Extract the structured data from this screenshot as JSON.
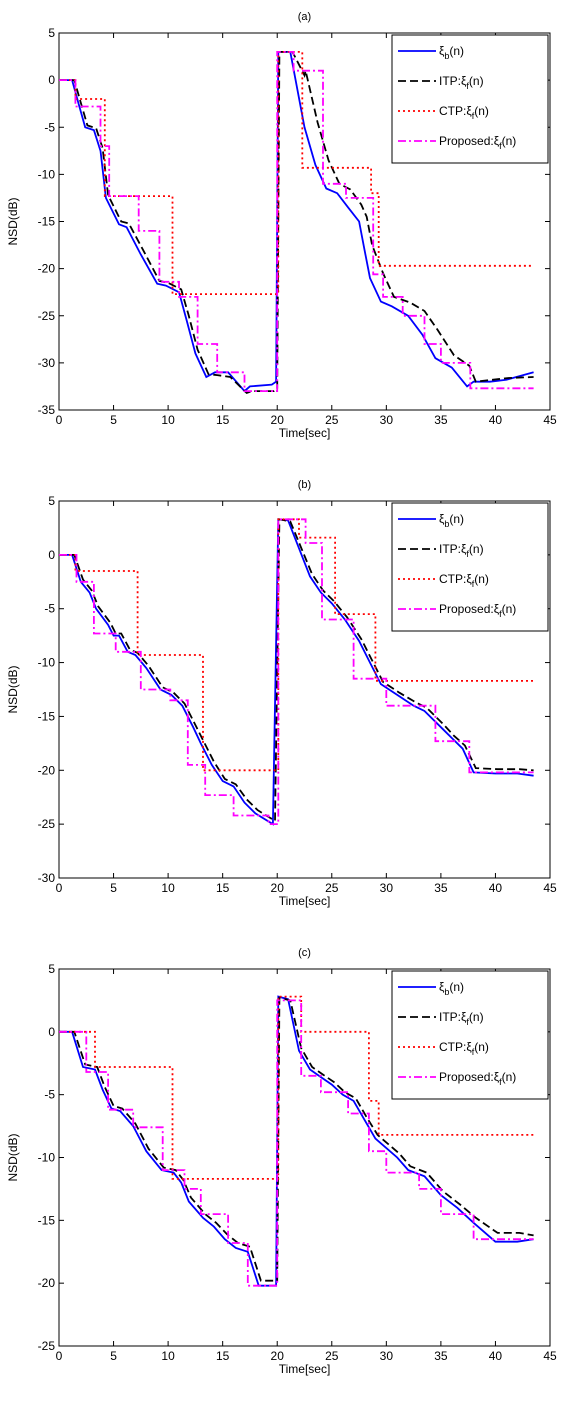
{
  "chart_data": [
    {
      "type": "line",
      "title": "(a)",
      "xlabel": "Time[sec]",
      "ylabel": "NSD(dB)",
      "xlim": [
        0,
        45
      ],
      "ylim": [
        -35,
        5
      ],
      "xticks": [
        0,
        5,
        10,
        15,
        20,
        25,
        30,
        35,
        40,
        45
      ],
      "yticks": [
        -35,
        -30,
        -25,
        -20,
        -15,
        -10,
        -5,
        0,
        5
      ],
      "grid": false,
      "legend": "top-right",
      "legend_entries": [
        "ξb(n)",
        "ITP:ξf(n)",
        "CTP:ξf(n)",
        "Proposed:ξf(n)"
      ],
      "series": [
        {
          "name": "ξb(n)",
          "color": "#0000ff",
          "style": "solid",
          "x": [
            0,
            1.2,
            1.8,
            2.4,
            3.2,
            3.8,
            4.3,
            5.5,
            6.2,
            7.5,
            9,
            9.8,
            11,
            11.7,
            12.5,
            13.5,
            14.3,
            15.5,
            17,
            17.5,
            19.5,
            19.9,
            20.1,
            21.2,
            22.5,
            23.5,
            24.5,
            25.5,
            26.5,
            27.5,
            28,
            28.5,
            29.5,
            30.5,
            32,
            33.3,
            34.5,
            36,
            37.4,
            38,
            39.5,
            41,
            43.5
          ],
          "y": [
            0,
            0,
            -2.5,
            -5,
            -5.3,
            -7.5,
            -12.5,
            -15.3,
            -15.6,
            -18.5,
            -21.6,
            -21.8,
            -22.5,
            -25.5,
            -29,
            -31.5,
            -31,
            -31,
            -33,
            -32.5,
            -32.3,
            -32,
            3,
            3,
            -5,
            -9,
            -11.5,
            -12,
            -13.5,
            -15,
            -18,
            -21,
            -23.5,
            -24,
            -25,
            -27,
            -29.5,
            -30.5,
            -32.5,
            -32,
            -32,
            -31.8,
            -31
          ]
        },
        {
          "name": "ITP:ξf(n)",
          "color": "#000000",
          "style": "dashed",
          "x": [
            0,
            1.4,
            2,
            2.6,
            3.4,
            4,
            4.5,
            5.7,
            6.4,
            7.7,
            9.2,
            10,
            11.2,
            11.9,
            12.7,
            13.7,
            14.5,
            15.7,
            17.2,
            17.7,
            19.7,
            20,
            20.2,
            21.4,
            22.5,
            22.6,
            23.7,
            24.7,
            25.7,
            26.7,
            27.7,
            28.2,
            28.7,
            29.7,
            30.7,
            32.2,
            33.5,
            34.7,
            36.2,
            37.6,
            38.2,
            39.7,
            41.2,
            43.5
          ],
          "y": [
            0,
            0,
            -2.4,
            -4.8,
            -5.1,
            -7.2,
            -12.2,
            -15,
            -15.2,
            -18,
            -21.3,
            -21.5,
            -22.2,
            -25,
            -28.6,
            -31.2,
            -31.3,
            -31.5,
            -33.2,
            -33,
            -33,
            -32.8,
            3,
            3,
            0.5,
            1,
            -4.5,
            -8.5,
            -11,
            -11.6,
            -13.2,
            -14.5,
            -17.5,
            -20.5,
            -23,
            -23.6,
            -24.5,
            -26.5,
            -29.2,
            -30.3,
            -32,
            -31.8,
            -31.6,
            -31.5
          ]
        },
        {
          "name": "CTP:ξf(n)",
          "color": "#ff0000",
          "style": "dotted",
          "x": [
            0,
            1.5,
            1.5,
            4.2,
            4.2,
            10.4,
            10.4,
            20.1,
            20.1,
            22.3,
            22.3,
            25.3,
            25.3,
            28.6,
            28.6,
            29.3,
            29.3,
            43.5
          ],
          "y": [
            0,
            0,
            -2,
            -2,
            -12.3,
            -12.3,
            -22.7,
            -22.7,
            3,
            3,
            -9.3,
            -9.3,
            -9.3,
            -9.3,
            -12,
            -12,
            -19.7,
            -19.7
          ]
        },
        {
          "name": "Proposed:ξf(n)",
          "color": "#ff00ff",
          "style": "dashdot",
          "x": [
            0,
            1.5,
            1.5,
            3.8,
            3.8,
            4.6,
            4.6,
            7.3,
            7.3,
            9.2,
            9.2,
            11,
            11,
            12.7,
            12.7,
            14.5,
            14.5,
            17,
            17,
            20,
            20,
            21.5,
            21.5,
            24.2,
            24.2,
            26.3,
            26.3,
            28.8,
            28.8,
            29.7,
            29.7,
            31.5,
            31.5,
            33.5,
            33.5,
            35,
            35,
            37.7,
            37.7,
            43.5
          ],
          "y": [
            0,
            0,
            -2.8,
            -2.8,
            -7,
            -7,
            -12.3,
            -12.3,
            -16,
            -16,
            -21.4,
            -21.4,
            -23,
            -23,
            -28,
            -28,
            -31,
            -31,
            -33,
            -33,
            3,
            3,
            1,
            1,
            -11,
            -11,
            -12.5,
            -12.5,
            -20.6,
            -20.6,
            -23,
            -23,
            -25,
            -25,
            -28,
            -28,
            -30,
            -30,
            -32.7,
            -32.7
          ]
        }
      ]
    },
    {
      "type": "line",
      "title": "(b)",
      "xlabel": "Time[sec]",
      "ylabel": "NSD(dB)",
      "xlim": [
        0,
        45
      ],
      "ylim": [
        -30,
        5
      ],
      "xticks": [
        0,
        5,
        10,
        15,
        20,
        25,
        30,
        35,
        40,
        45
      ],
      "yticks": [
        -30,
        -25,
        -20,
        -15,
        -10,
        -5,
        0,
        5
      ],
      "grid": false,
      "legend": "top-right",
      "legend_entries": [
        "ξb(n)",
        "ITP:ξf(n)",
        "CTP:ξf(n)",
        "Proposed:ξf(n)"
      ],
      "series": [
        {
          "name": "ξb(n)",
          "color": "#0000ff",
          "style": "solid",
          "x": [
            0,
            1.2,
            2,
            2.8,
            3.4,
            4.5,
            5,
            5.5,
            6.3,
            7,
            8,
            9.3,
            10.3,
            11.3,
            12.3,
            13,
            14,
            15,
            16,
            17,
            18,
            19.6,
            20.1,
            21,
            23,
            24,
            25,
            26.2,
            27.5,
            28.5,
            29.5,
            31,
            32.5,
            33.5,
            35,
            36,
            37,
            38,
            40,
            42,
            43.5
          ],
          "y": [
            0,
            0,
            -2.5,
            -3.5,
            -5,
            -6.5,
            -7.5,
            -7.5,
            -9,
            -9.3,
            -10.5,
            -12.5,
            -13,
            -14,
            -16,
            -17.5,
            -19.5,
            -21,
            -21.5,
            -23,
            -24,
            -25,
            3.3,
            3.2,
            -2,
            -3.5,
            -4.5,
            -6,
            -8,
            -10,
            -12,
            -13,
            -14,
            -14.5,
            -16,
            -17,
            -18,
            -20.2,
            -20.3,
            -20.3,
            -20.5
          ]
        },
        {
          "name": "ITP:ξf(n)",
          "color": "#000000",
          "style": "dashed",
          "x": [
            0,
            1.4,
            2.2,
            3,
            3.6,
            4.7,
            5.2,
            5.7,
            6.5,
            7.2,
            8.2,
            9.5,
            10.5,
            11.5,
            12.5,
            13.2,
            14.2,
            15.2,
            16.2,
            17.2,
            18.2,
            19.8,
            20.2,
            21.2,
            23.2,
            24.2,
            25.2,
            26.4,
            27.7,
            28.7,
            29.7,
            31.2,
            32.7,
            33.7,
            35.2,
            36.2,
            37.2,
            38.2,
            40.2,
            42.2,
            43.5
          ],
          "y": [
            0,
            0,
            -2.3,
            -3.3,
            -4.8,
            -6.3,
            -7.3,
            -7.3,
            -8.8,
            -9.1,
            -10.3,
            -12.3,
            -12.8,
            -13.8,
            -15.8,
            -17.2,
            -19.2,
            -20.8,
            -21.3,
            -22.7,
            -23.7,
            -24.7,
            3.3,
            3.1,
            -1.8,
            -3.3,
            -4.3,
            -5.8,
            -7.8,
            -9.8,
            -11.8,
            -12.8,
            -13.7,
            -14.2,
            -15.7,
            -16.8,
            -17.7,
            -19.8,
            -19.9,
            -19.9,
            -20
          ]
        },
        {
          "name": "CTP:ξf(n)",
          "color": "#ff0000",
          "style": "dotted",
          "x": [
            0,
            1.5,
            1.5,
            7.2,
            7.2,
            13.2,
            13.2,
            20.1,
            20.1,
            22,
            22,
            25.3,
            25.3,
            29,
            29,
            43.5
          ],
          "y": [
            0,
            0,
            -1.5,
            -1.5,
            -9.3,
            -9.3,
            -20,
            -20,
            3.3,
            3.3,
            1.6,
            1.6,
            -5.5,
            -5.5,
            -11.7,
            -11.7
          ]
        },
        {
          "name": "Proposed:ξf(n)",
          "color": "#ff00ff",
          "style": "dashdot",
          "x": [
            0,
            1.6,
            1.6,
            3.2,
            3.2,
            5.2,
            5.2,
            7.5,
            7.5,
            10.2,
            10.2,
            11.8,
            11.8,
            13.4,
            13.4,
            16,
            16,
            19.2,
            19.2,
            20.1,
            20.1,
            22.6,
            22.6,
            24.1,
            24.1,
            27,
            27,
            30,
            30,
            34.5,
            34.5,
            37.6,
            37.6,
            43.5
          ],
          "y": [
            0,
            0,
            -2.5,
            -2.5,
            -7.3,
            -7.3,
            -9,
            -9,
            -12.5,
            -12.5,
            -13.5,
            -13.5,
            -19.5,
            -19.5,
            -22.3,
            -22.3,
            -24.2,
            -24.2,
            -25,
            -25,
            3.3,
            3.3,
            1.1,
            1.1,
            -6,
            -6,
            -11.5,
            -11.5,
            -14,
            -14,
            -17.3,
            -17.3,
            -20.2,
            -20.2
          ]
        }
      ]
    },
    {
      "type": "line",
      "title": "(c)",
      "xlabel": "Time[sec]",
      "ylabel": "NSD(dB)",
      "xlim": [
        0,
        45
      ],
      "ylim": [
        -25,
        5
      ],
      "xticks": [
        0,
        5,
        10,
        15,
        20,
        25,
        30,
        35,
        40,
        45
      ],
      "yticks": [
        -25,
        -20,
        -15,
        -10,
        -5,
        0,
        5
      ],
      "grid": false,
      "legend": "top-right",
      "legend_entries": [
        "ξb(n)",
        "ITP:ξf(n)",
        "CTP:ξf(n)",
        "Proposed:ξf(n)"
      ],
      "series": [
        {
          "name": "ξb(n)",
          "color": "#0000ff",
          "style": "solid",
          "x": [
            0,
            1.2,
            2.2,
            3.3,
            4,
            4.8,
            5.6,
            6.8,
            8,
            9.4,
            10.5,
            11.2,
            11.9,
            13.2,
            14.2,
            15.2,
            16.2,
            17.3,
            18.3,
            19.9,
            20.1,
            21,
            22,
            23,
            24,
            25,
            26,
            27,
            28,
            29,
            31,
            32,
            33.5,
            35,
            36.5,
            38,
            40,
            42,
            43.5
          ],
          "y": [
            0,
            0,
            -2.8,
            -3,
            -4.6,
            -6.1,
            -6.3,
            -7.5,
            -9.5,
            -11,
            -11.2,
            -12,
            -13.5,
            -14.8,
            -15.5,
            -16.5,
            -17.2,
            -17.5,
            -20.2,
            -20.2,
            2.8,
            2.6,
            -1.5,
            -3,
            -3.6,
            -4.2,
            -5,
            -5.5,
            -7,
            -8.5,
            -10,
            -11,
            -11.5,
            -13,
            -14,
            -15.2,
            -16.7,
            -16.7,
            -16.5
          ]
        },
        {
          "name": "ITP:ξf(n)",
          "color": "#000000",
          "style": "dashed",
          "x": [
            0,
            1.4,
            2.4,
            3.5,
            4.2,
            5,
            5.8,
            7,
            8.2,
            9.6,
            10.7,
            11.4,
            12.1,
            13.4,
            14.4,
            15.4,
            16.4,
            17.5,
            18.5,
            20,
            20.2,
            21.2,
            22.2,
            23.2,
            24.2,
            25.2,
            26.2,
            27.2,
            28.2,
            29.2,
            31.2,
            32.2,
            33.7,
            35.2,
            36.7,
            38.2,
            40.2,
            42.2,
            43.5
          ],
          "y": [
            0,
            0,
            -2.6,
            -2.8,
            -4.4,
            -5.9,
            -6.1,
            -7.3,
            -9.3,
            -10.8,
            -11,
            -11.8,
            -13.2,
            -14.5,
            -15.2,
            -16.1,
            -16.8,
            -17.1,
            -19.8,
            -19.8,
            2.7,
            2.5,
            -1.3,
            -2.8,
            -3.4,
            -4,
            -4.8,
            -5.3,
            -6.8,
            -8.2,
            -9.7,
            -10.7,
            -11.2,
            -12.7,
            -13.7,
            -14.8,
            -16,
            -16,
            -16.2
          ]
        },
        {
          "name": "CTP:ξf(n)",
          "color": "#ff0000",
          "style": "dotted",
          "x": [
            0,
            3.3,
            3.3,
            10.4,
            10.4,
            20.1,
            20.1,
            22.2,
            22.2,
            28.4,
            28.4,
            29.3,
            29.3,
            43.5
          ],
          "y": [
            0,
            0,
            -2.8,
            -2.8,
            -11.7,
            -11.7,
            2.8,
            2.8,
            0,
            0,
            -5.5,
            -5.5,
            -8.2,
            -8.2
          ]
        },
        {
          "name": "Proposed:ξf(n)",
          "color": "#ff00ff",
          "style": "dashdot",
          "x": [
            0,
            2.5,
            2.5,
            4.5,
            4.5,
            6.8,
            6.8,
            9.5,
            9.5,
            11.5,
            11.5,
            13,
            13,
            15.5,
            15.5,
            17.3,
            17.3,
            20,
            20,
            22.2,
            22.2,
            24,
            24,
            26.5,
            26.5,
            28.4,
            28.4,
            30,
            30,
            33,
            33,
            35,
            35,
            38,
            38,
            43.5
          ],
          "y": [
            0,
            0,
            -3.2,
            -3.2,
            -6.2,
            -6.2,
            -7.6,
            -7.6,
            -11,
            -11,
            -12.5,
            -12.5,
            -14.5,
            -14.5,
            -16.8,
            -16.8,
            -20.2,
            -20.2,
            2.5,
            2.5,
            -3.5,
            -3.5,
            -4.8,
            -4.8,
            -6.5,
            -6.5,
            -9.5,
            -9.5,
            -11.2,
            -11.2,
            -12.5,
            -12.5,
            -14.5,
            -14.5,
            -16.5,
            -16.5
          ]
        }
      ]
    }
  ]
}
